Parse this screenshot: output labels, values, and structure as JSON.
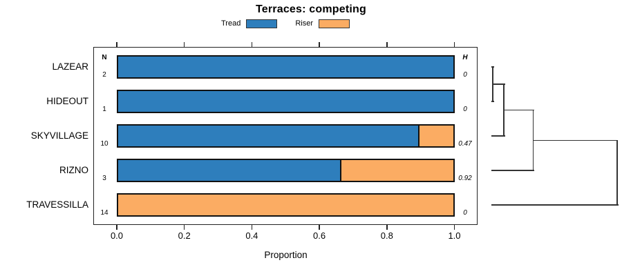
{
  "chart_data": {
    "type": "bar",
    "orientation": "horizontal",
    "stacked": true,
    "title": "Terraces: competing",
    "xlabel": "Proportion",
    "xlim": [
      0,
      1
    ],
    "grid": false,
    "legend_position": "top",
    "xticks": [
      0,
      0.2,
      0.4,
      0.6,
      0.8,
      1.0
    ],
    "xtick_labels": [
      "0.0",
      "0.2",
      "0.4",
      "0.6",
      "0.8",
      "1.0"
    ],
    "categories": [
      "LAZEAR",
      "HIDEOUT",
      "SKYVILLAGE",
      "RIZNO",
      "TRAVESSILLA"
    ],
    "series": [
      {
        "name": "Tread",
        "color": "#2E7EBC",
        "values": [
          1.0,
          1.0,
          0.9,
          0.6667,
          0.0
        ]
      },
      {
        "name": "Riser",
        "color": "#FBAC63",
        "values": [
          0.0,
          0.0,
          0.1,
          0.3333,
          1.0
        ]
      }
    ],
    "legend": [
      {
        "name": "Tread",
        "color": "#2E7EBC"
      },
      {
        "name": "Riser",
        "color": "#FBAC63"
      }
    ],
    "columns": {
      "n_header": "N",
      "h_header": "H"
    },
    "rows": [
      {
        "category": "LAZEAR",
        "n": 2,
        "tread": 1.0,
        "riser": 0.0,
        "h": "0"
      },
      {
        "category": "HIDEOUT",
        "n": 1,
        "tread": 1.0,
        "riser": 0.0,
        "h": "0"
      },
      {
        "category": "SKYVILLAGE",
        "n": 10,
        "tread": 0.9,
        "riser": 0.1,
        "h": "0.47"
      },
      {
        "category": "RIZNO",
        "n": 3,
        "tread": 0.6667,
        "riser": 0.3333,
        "h": "0.92"
      },
      {
        "category": "TRAVESSILLA",
        "n": 14,
        "tread": 0.0,
        "riser": 1.0,
        "h": "0"
      }
    ],
    "dendrogram": {
      "leaf_order": [
        "LAZEAR",
        "HIDEOUT",
        "SKYVILLAGE",
        "RIZNO",
        "TRAVESSILLA"
      ],
      "join_heights_normalized": [
        0.011,
        0.099,
        0.332,
        1.0
      ],
      "merges": [
        [
          "LAZEAR",
          "HIDEOUT"
        ],
        [
          "LAZEAR+HIDEOUT",
          "SKYVILLAGE"
        ],
        [
          "LAZEAR+HIDEOUT+SKYVILLAGE",
          "RIZNO"
        ],
        [
          "LAZEAR+HIDEOUT+SKYVILLAGE+RIZNO",
          "TRAVESSILLA"
        ]
      ]
    }
  }
}
